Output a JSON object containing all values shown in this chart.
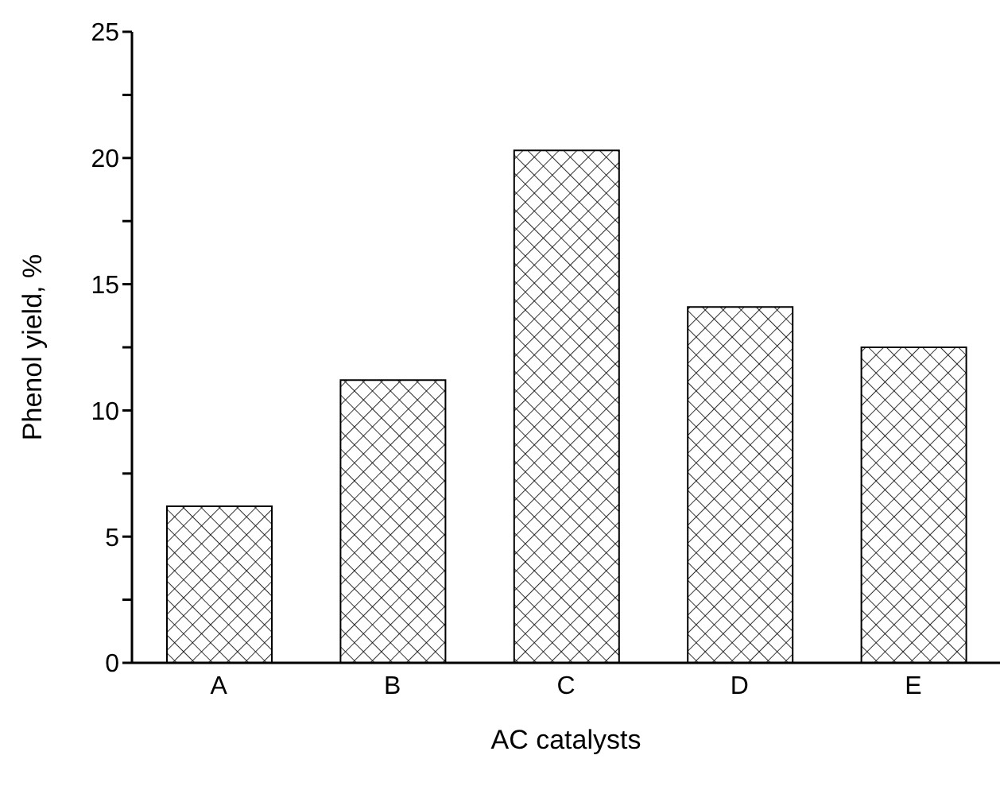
{
  "chart_data": {
    "type": "bar",
    "xlabel": "AC catalysts",
    "ylabel": "Phenol yield, %",
    "categories": [
      "A",
      "B",
      "C",
      "D",
      "E"
    ],
    "values": [
      6.2,
      11.2,
      20.3,
      14.1,
      12.5
    ],
    "color": "#000000",
    "ylim": [
      0,
      25
    ],
    "yticks": [
      0,
      {
        "value": 2.5,
        "label": null
      },
      5,
      {
        "value": 7.5,
        "label": null
      },
      10,
      {
        "value": 12.5,
        "label": null
      },
      15,
      {
        "value": 17.5,
        "label": null
      },
      20,
      {
        "value": 22.5,
        "label": null
      },
      25
    ],
    "grid": false,
    "legend": false
  }
}
